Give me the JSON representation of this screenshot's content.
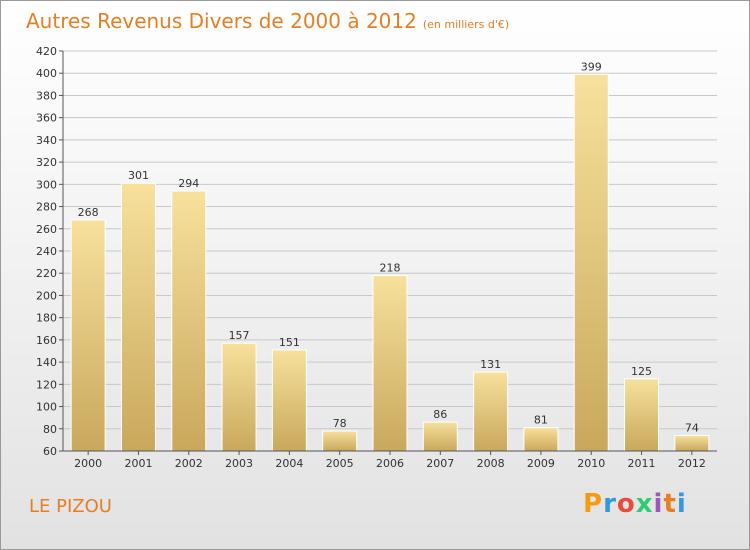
{
  "title": "Autres Revenus Divers de 2000 à 2012",
  "subtitle": "(en milliers d'€)",
  "place": "LE PIZOU",
  "brand": {
    "letters": [
      "P",
      "r",
      "o",
      "x",
      "i",
      "t",
      "i"
    ],
    "colors": [
      "#f39c12",
      "#3498db",
      "#e74c3c",
      "#2ecc71",
      "#9b59b6",
      "#e67e22",
      "#3498db"
    ]
  },
  "colors": {
    "title": "#e67e22",
    "bar_light": "#f7e19c",
    "bar_dark": "#c9a85c",
    "grid": "#c8c8c8",
    "axis": "#555555"
  },
  "chart_data": {
    "type": "bar",
    "title": "Autres Revenus Divers de 2000 à 2012",
    "subtitle": "(en milliers d'€)",
    "categories": [
      "2000",
      "2001",
      "2002",
      "2003",
      "2004",
      "2005",
      "2006",
      "2007",
      "2008",
      "2009",
      "2010",
      "2011",
      "2012"
    ],
    "values": [
      268,
      301,
      294,
      157,
      151,
      78,
      218,
      86,
      131,
      81,
      399,
      125,
      74
    ],
    "ylim": [
      60,
      420
    ],
    "yticks": [
      60,
      80,
      100,
      120,
      140,
      160,
      180,
      200,
      220,
      240,
      260,
      280,
      300,
      320,
      340,
      360,
      380,
      400,
      420
    ],
    "grid": true,
    "legend": "none"
  }
}
